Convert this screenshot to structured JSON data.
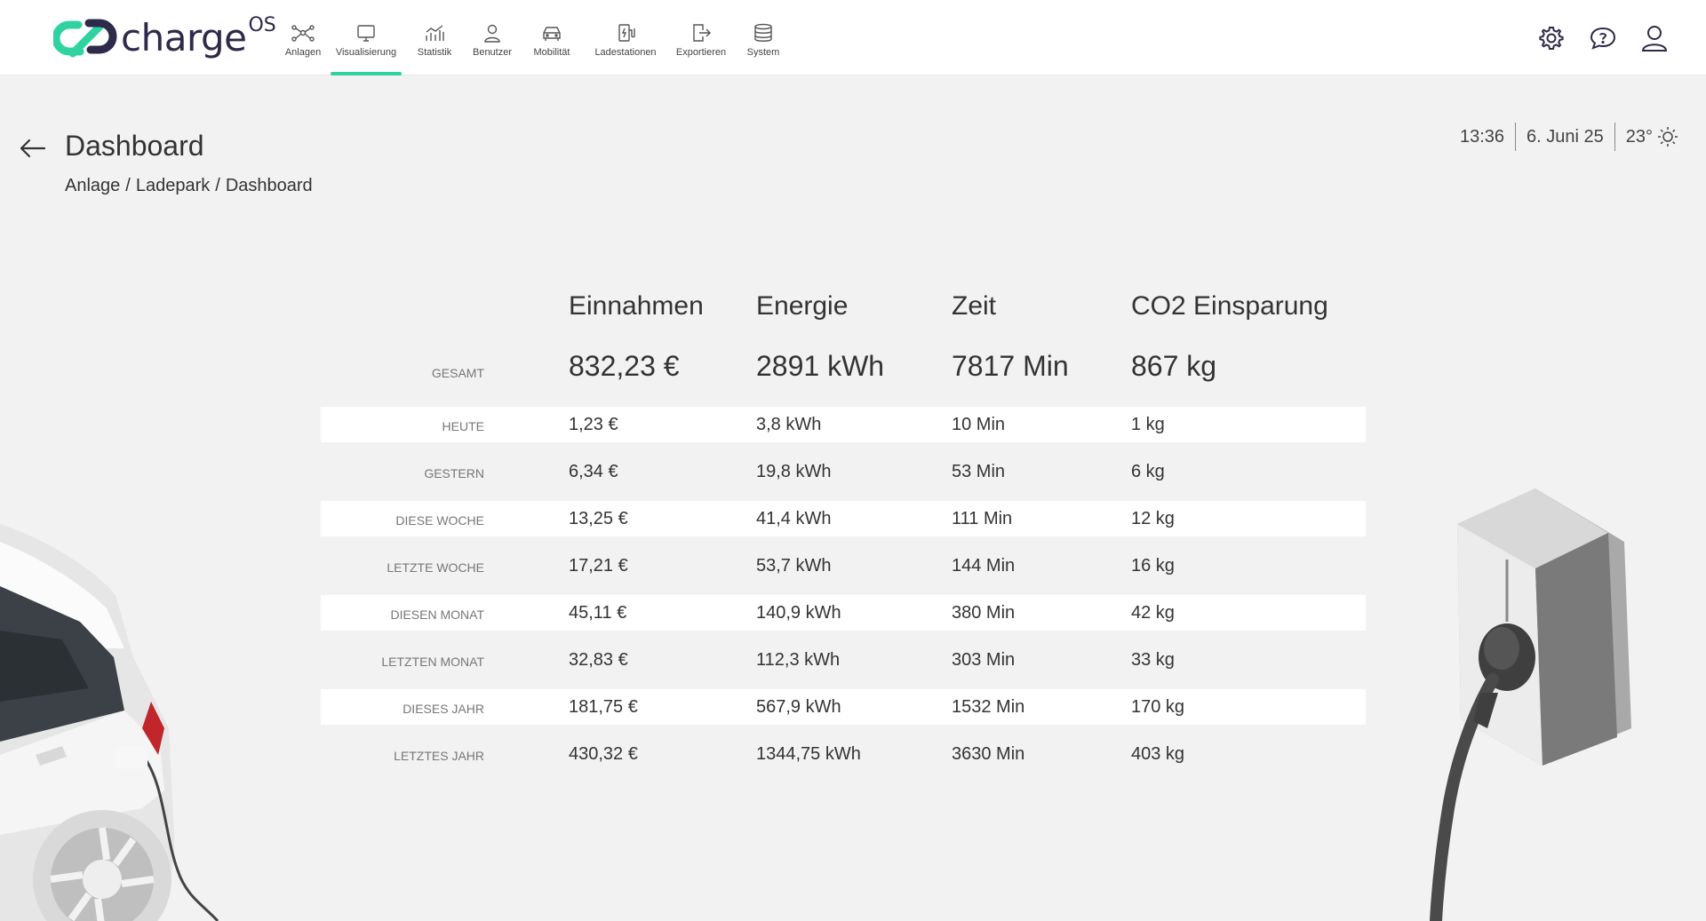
{
  "app": {
    "logo_text": "charge",
    "logo_sup": "OS",
    "accent_color": "#2ed3a0",
    "brand_dark": "#2d2a4a"
  },
  "nav": {
    "items": [
      {
        "label": "Anlagen",
        "icon": "network-icon"
      },
      {
        "label": "Visualisierung",
        "icon": "monitor-icon",
        "active": true
      },
      {
        "label": "Statistik",
        "icon": "chart-icon"
      },
      {
        "label": "Benutzer",
        "icon": "user-icon"
      },
      {
        "label": "Mobilität",
        "icon": "car-icon"
      },
      {
        "label": "Ladestationen",
        "icon": "charging-station-icon"
      },
      {
        "label": "Exportieren",
        "icon": "export-icon"
      },
      {
        "label": "System",
        "icon": "database-icon"
      }
    ]
  },
  "top_icons": [
    "gear-icon",
    "help-chat-icon",
    "account-icon"
  ],
  "header": {
    "title": "Dashboard",
    "breadcrumb": [
      "Anlage",
      "Ladepark",
      "Dashboard"
    ],
    "breadcrumb_sep": "/"
  },
  "status": {
    "time": "13:36",
    "date": "6. Juni 25",
    "temperature": "23°",
    "weather_icon": "sun-icon"
  },
  "stats": {
    "columns": [
      "Einnahmen",
      "Energie",
      "Zeit",
      "CO2 Einsparung"
    ],
    "total": {
      "label": "GESAMT",
      "values": [
        "832,23 €",
        "2891 kWh",
        "7817 Min",
        "867 kg"
      ]
    },
    "rows": [
      {
        "label": "HEUTE",
        "values": [
          "1,23 €",
          "3,8 kWh",
          "10 Min",
          "1 kg"
        ]
      },
      {
        "label": "GESTERN",
        "values": [
          "6,34 €",
          "19,8 kWh",
          "53 Min",
          "6 kg"
        ]
      },
      {
        "label": "DIESE WOCHE",
        "values": [
          "13,25 €",
          "41,4 kWh",
          "111 Min",
          "12 kg"
        ]
      },
      {
        "label": "LETZTE WOCHE",
        "values": [
          "17,21 €",
          "53,7 kWh",
          "144 Min",
          "16 kg"
        ]
      },
      {
        "label": "DIESEN MONAT",
        "values": [
          "45,11 €",
          "140,9 kWh",
          "380 Min",
          "42 kg"
        ]
      },
      {
        "label": "LETZTEN MONAT",
        "values": [
          "32,83 €",
          "112,3 kWh",
          "303 Min",
          "33 kg"
        ]
      },
      {
        "label": "DIESES JAHR",
        "values": [
          "181,75 €",
          "567,9 kWh",
          "1532 Min",
          "170 kg"
        ]
      },
      {
        "label": "LETZTES JAHR",
        "values": [
          "430,32 €",
          "1344,75 kWh",
          "3630 Min",
          "403 kg"
        ]
      }
    ]
  }
}
